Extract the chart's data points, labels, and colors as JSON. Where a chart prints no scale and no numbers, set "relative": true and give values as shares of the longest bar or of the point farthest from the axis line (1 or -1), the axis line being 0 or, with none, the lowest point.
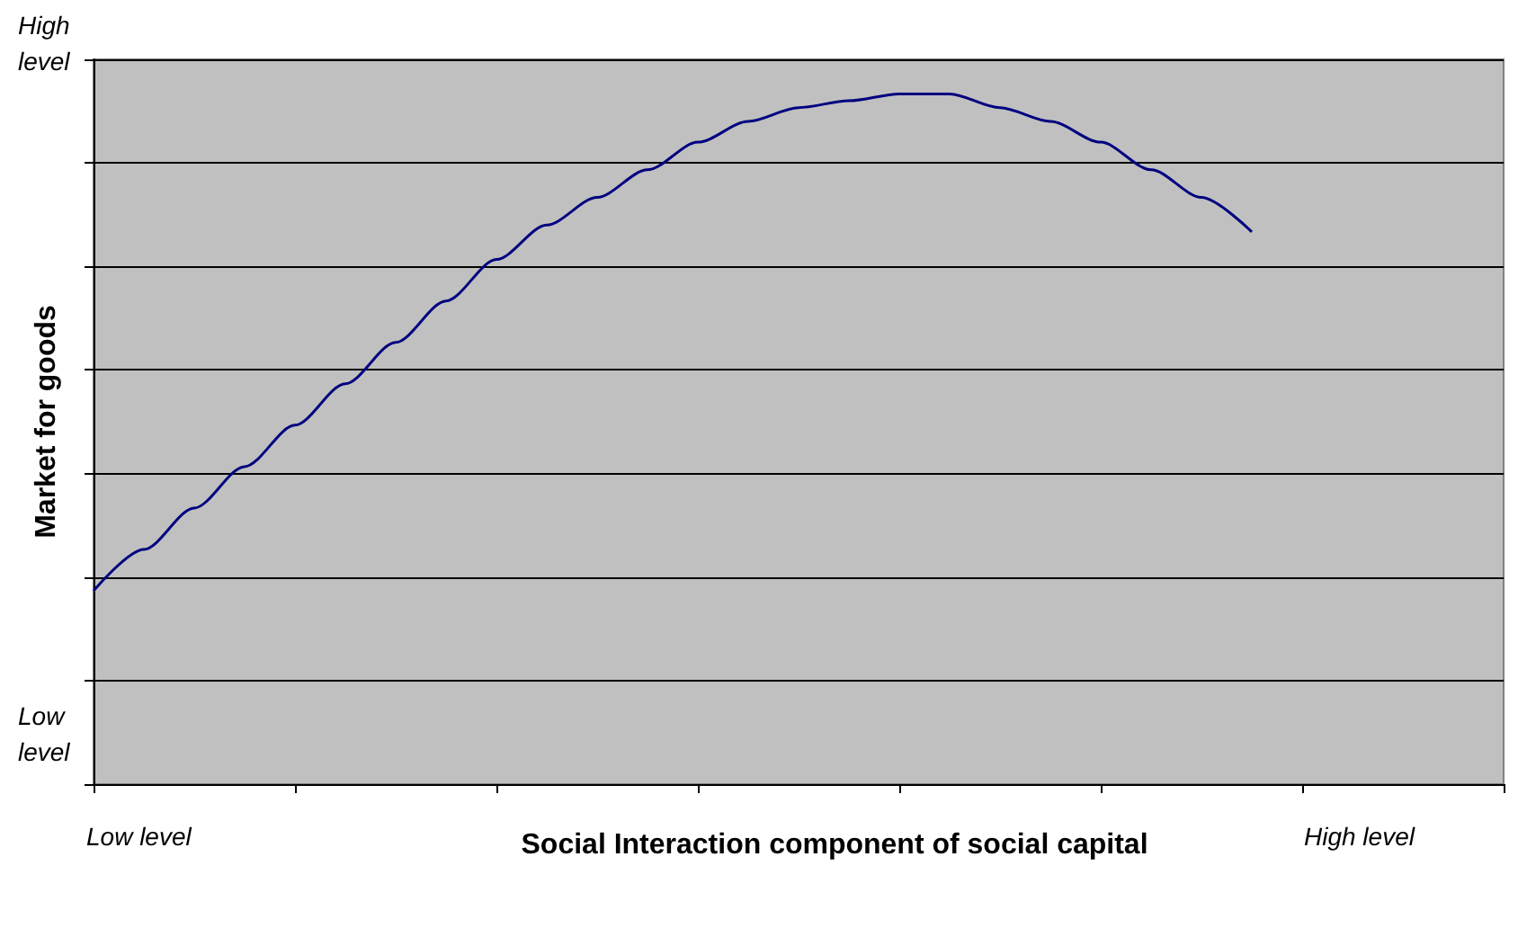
{
  "chart_data": {
    "type": "line",
    "relative": true,
    "xlabel": "Social Interaction component of social capital",
    "ylabel": "Market for goods",
    "annotations": [
      "High level",
      "Low level",
      "Low level",
      "High level"
    ],
    "categories": [
      null,
      null,
      null,
      null,
      null,
      null,
      null,
      null,
      null,
      null,
      null,
      null,
      null,
      null,
      null,
      null,
      null,
      null,
      null,
      null,
      null,
      null,
      null,
      null,
      null,
      null,
      null,
      null,
      null
    ],
    "series": [
      {
        "color": "#000080",
        "values": [
          0.28,
          0.34,
          0.4,
          0.46,
          0.52,
          0.58,
          0.64,
          0.7,
          0.76,
          0.81,
          0.85,
          0.89,
          0.93,
          0.96,
          0.98,
          0.99,
          1,
          1,
          0.98,
          0.96,
          0.93,
          0.89,
          0.85,
          0.8,
          null,
          null,
          null,
          null,
          null
        ]
      }
    ],
    "grid": "y",
    "marker": "none",
    "line_style": "solid"
  }
}
